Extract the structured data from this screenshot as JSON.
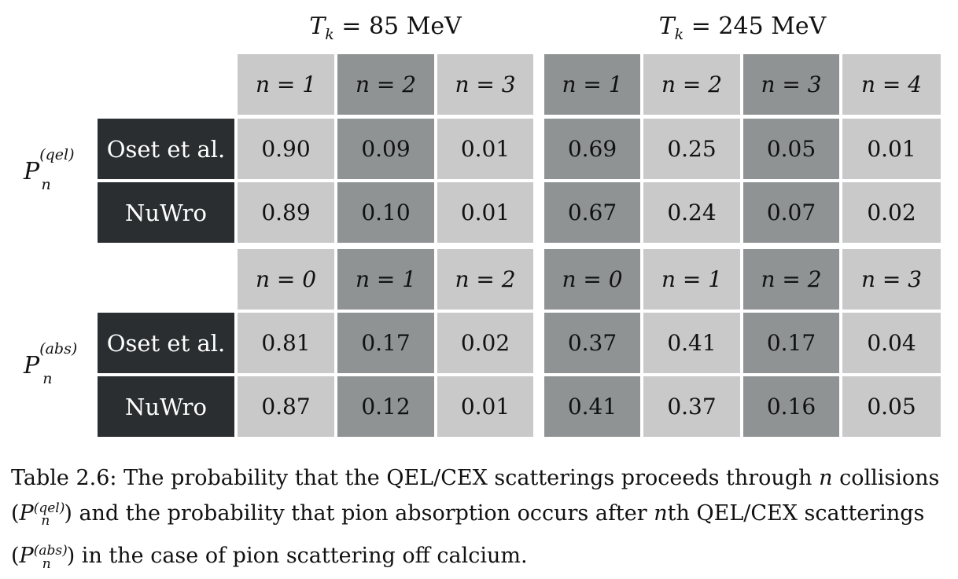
{
  "groups": [
    {
      "title_var": "T",
      "title_sub": "k",
      "title_rest": " = 85 MeV"
    },
    {
      "title_var": "T",
      "title_sub": "k",
      "title_rest": " = 245 MeV"
    }
  ],
  "section_qel": {
    "side_label": {
      "base": "P",
      "sub": "n",
      "sup": "(qel)"
    },
    "headers": [
      "n = 1",
      "n = 2",
      "n = 3",
      "n = 1",
      "n = 2",
      "n = 3",
      "n = 4"
    ],
    "rows": [
      {
        "label": "Oset et al.",
        "values": [
          "0.90",
          "0.09",
          "0.01",
          "0.69",
          "0.25",
          "0.05",
          "0.01"
        ]
      },
      {
        "label": "NuWro",
        "values": [
          "0.89",
          "0.10",
          "0.01",
          "0.67",
          "0.24",
          "0.07",
          "0.02"
        ]
      }
    ]
  },
  "section_abs": {
    "side_label": {
      "base": "P",
      "sub": "n",
      "sup": "(abs)"
    },
    "headers": [
      "n = 0",
      "n = 1",
      "n = 2",
      "n = 0",
      "n = 1",
      "n = 2",
      "n = 3"
    ],
    "rows": [
      {
        "label": "Oset et al.",
        "values": [
          "0.81",
          "0.17",
          "0.02",
          "0.37",
          "0.41",
          "0.17",
          "0.04"
        ]
      },
      {
        "label": "NuWro",
        "values": [
          "0.87",
          "0.12",
          "0.01",
          "0.41",
          "0.37",
          "0.16",
          "0.05"
        ]
      }
    ]
  },
  "caption": {
    "line1": "Table 2.6: The probability that the QEL/CEX scatterings proceeds through n collisions",
    "line2": "(P(qel) n) and the probability that pion absorption occurs after nth QEL/CEX scatterings",
    "line3": "(P(abs) n) in the case of pion scattering off calcium."
  },
  "colors": {
    "light": "#c8c9c8",
    "dark": "#909394",
    "label_bg": "#2a2e31"
  }
}
